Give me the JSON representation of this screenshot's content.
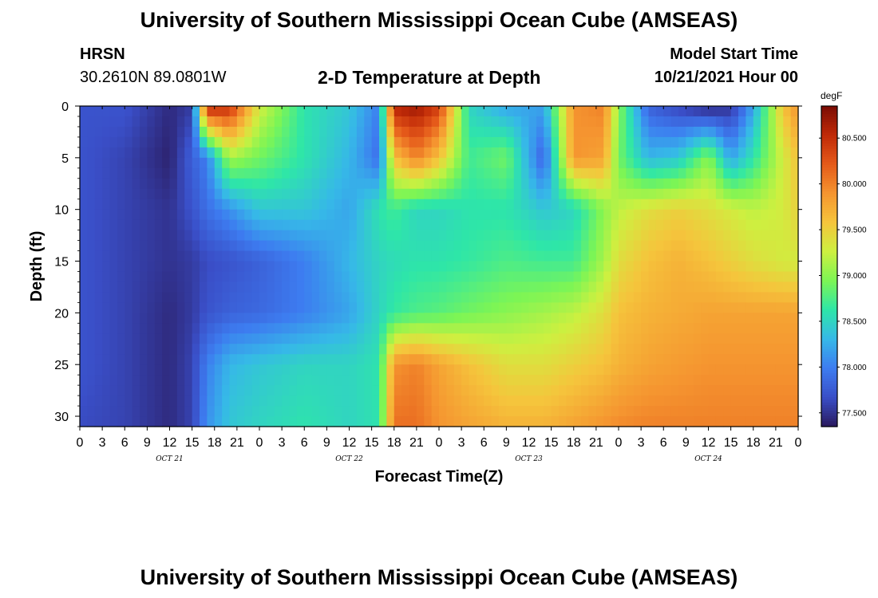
{
  "page": {
    "title_top": "University of Southern Mississippi Ocean Cube (AMSEAS)",
    "title_bottom": "University of Southern Mississippi Ocean Cube (AMSEAS)",
    "station": "HRSN",
    "coordinates": "30.2610N  89.0801W",
    "plot_title": "2-D Temperature at Depth",
    "model_start_label": "Model Start Time",
    "model_start_value": "10/21/2021 Hour 00"
  },
  "chart_data": {
    "type": "heatmap",
    "title": "2-D Temperature at Depth",
    "xlabel": "Forecast Time(Z)",
    "ylabel": "Depth (ft)",
    "x_range_hours": [
      0,
      96
    ],
    "y_range_ft": [
      0,
      31
    ],
    "x_tick_labels": [
      "0",
      "3",
      "6",
      "9",
      "12",
      "15",
      "18",
      "21",
      "0",
      "3",
      "6",
      "9",
      "12",
      "15",
      "18",
      "21",
      "0",
      "3",
      "6",
      "9",
      "12",
      "15",
      "18",
      "21",
      "0",
      "3",
      "6",
      "9",
      "12",
      "15",
      "18",
      "21",
      "0"
    ],
    "day_labels": [
      "OCT 21",
      "OCT 22",
      "OCT 23",
      "OCT 24"
    ],
    "y_ticks": [
      0,
      5,
      10,
      15,
      20,
      25,
      30
    ],
    "colorbar": {
      "unit": "degF",
      "range": [
        77.35,
        80.85
      ],
      "ticks": [
        "80.500",
        "80.000",
        "79.500",
        "79.000",
        "78.500",
        "78.000",
        "77.500"
      ],
      "colors": [
        "#2a1a5e",
        "#3a4fc8",
        "#3d7cf0",
        "#36b8e8",
        "#2ee6a8",
        "#7cf555",
        "#cdf040",
        "#f5c53c",
        "#f59530",
        "#e55a1a",
        "#c02a08",
        "#7a0c03"
      ]
    },
    "depth_rows_ft": [
      0,
      5,
      10,
      15,
      20,
      25,
      31
    ],
    "time_cols_hours": [
      0,
      6,
      12,
      15,
      17,
      20,
      24,
      30,
      36,
      40,
      42,
      45,
      48,
      52,
      57,
      62,
      66,
      70,
      72,
      76,
      80,
      84,
      87,
      90,
      94,
      96
    ],
    "values_degF": [
      [
        77.7,
        77.7,
        77.45,
        77.55,
        80.6,
        80.5,
        79.3,
        78.6,
        78.4,
        78.0,
        80.6,
        80.7,
        80.4,
        78.5,
        78.2,
        78.2,
        79.9,
        80.0,
        79.0,
        77.8,
        77.6,
        77.4,
        77.5,
        78.2,
        79.6,
        79.9
      ],
      [
        77.7,
        77.6,
        77.4,
        77.8,
        78.0,
        79.1,
        78.9,
        78.6,
        78.3,
        77.9,
        79.6,
        80.0,
        79.6,
        78.7,
        78.9,
        77.8,
        79.9,
        79.8,
        78.9,
        78.3,
        78.4,
        79.0,
        78.2,
        78.6,
        79.3,
        79.6
      ],
      [
        77.7,
        77.6,
        77.5,
        77.7,
        77.9,
        78.1,
        78.4,
        78.4,
        78.2,
        78.6,
        78.7,
        78.5,
        78.5,
        78.6,
        78.6,
        78.4,
        78.5,
        79.0,
        79.2,
        79.4,
        79.5,
        79.4,
        79.3,
        79.2,
        79.3,
        79.5
      ],
      [
        77.7,
        77.6,
        77.5,
        77.55,
        77.65,
        77.7,
        77.8,
        78.0,
        78.3,
        78.5,
        78.55,
        78.6,
        78.6,
        78.65,
        78.75,
        78.7,
        78.7,
        79.1,
        79.4,
        79.6,
        79.7,
        79.6,
        79.5,
        79.4,
        79.3,
        79.3
      ],
      [
        77.7,
        77.6,
        77.45,
        77.55,
        77.7,
        77.8,
        77.85,
        78.0,
        78.2,
        78.5,
        78.65,
        78.75,
        78.8,
        78.9,
        79.0,
        79.1,
        79.2,
        79.4,
        79.6,
        79.7,
        79.75,
        79.8,
        79.8,
        79.8,
        79.8,
        79.8
      ],
      [
        77.7,
        77.6,
        77.45,
        77.6,
        78.0,
        78.3,
        78.4,
        78.5,
        78.5,
        78.6,
        79.9,
        80.0,
        79.8,
        79.6,
        79.4,
        79.4,
        79.5,
        79.6,
        79.7,
        79.8,
        79.85,
        79.9,
        79.9,
        79.9,
        79.9,
        79.9
      ],
      [
        77.65,
        77.6,
        77.45,
        77.6,
        78.1,
        78.4,
        78.5,
        78.6,
        78.5,
        78.6,
        80.1,
        80.1,
        79.9,
        79.8,
        79.7,
        79.7,
        79.8,
        79.9,
        79.95,
        80.0,
        80.0,
        80.0,
        80.0,
        80.0,
        80.0,
        80.0
      ]
    ],
    "grid": false,
    "legend": "colorbar-right"
  }
}
